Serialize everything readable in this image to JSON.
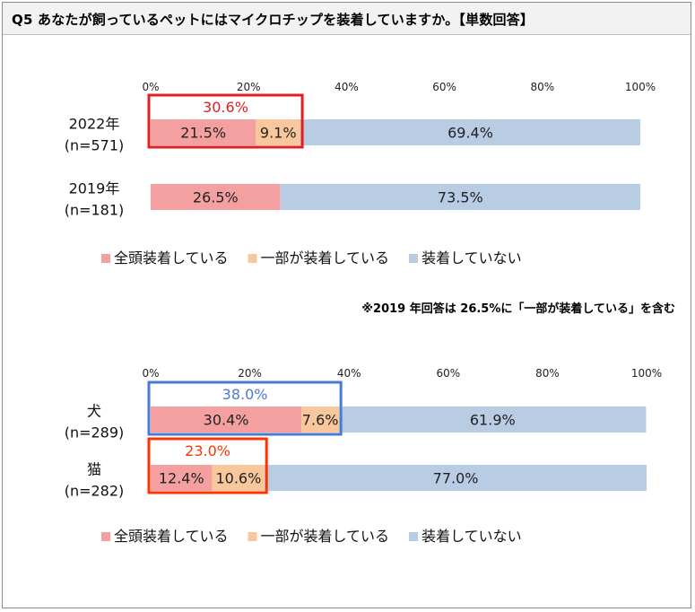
{
  "header": {
    "title": "Q5 あなたが飼っているペットにはマイクロチップを装着していますか。【単数回答】"
  },
  "note": "※2019 年回答は 26.5%に「一部が装着している」を含む",
  "colors": {
    "full": "#f4a0a0",
    "partial": "#f8c79b",
    "none": "#b8cce4",
    "highlight_red": "#e02020",
    "highlight_blue": "#4a7bd0",
    "highlight_orange": "#ff3300"
  },
  "chart_data": [
    {
      "type": "bar",
      "orientation": "horizontal",
      "stacked": true,
      "xlim": [
        0,
        100
      ],
      "ticks": [
        "0%",
        "20%",
        "40%",
        "60%",
        "80%",
        "100%"
      ],
      "categories": [
        {
          "label": "2022年",
          "sublabel": "(n=571)"
        },
        {
          "label": "2019年",
          "sublabel": "(n=181)"
        }
      ],
      "series": [
        {
          "name": "全頭装着している",
          "values": [
            21.5,
            26.5
          ],
          "labels": [
            "21.5%",
            "26.5%"
          ]
        },
        {
          "name": "一部が装着している",
          "values": [
            9.1,
            0
          ],
          "labels": [
            "9.1%",
            ""
          ]
        },
        {
          "name": "装着していない",
          "values": [
            69.4,
            73.5
          ],
          "labels": [
            "69.4%",
            "73.5%"
          ]
        }
      ],
      "highlights": [
        {
          "category_index": 0,
          "text": "30.6%",
          "color": "#e02020"
        }
      ],
      "legend_position": "bottom"
    },
    {
      "type": "bar",
      "orientation": "horizontal",
      "stacked": true,
      "xlim": [
        0,
        100
      ],
      "ticks": [
        "0%",
        "20%",
        "40%",
        "60%",
        "80%",
        "100%"
      ],
      "categories": [
        {
          "label": "犬",
          "sublabel": "(n=289)"
        },
        {
          "label": "猫",
          "sublabel": "(n=282)"
        }
      ],
      "series": [
        {
          "name": "全頭装着している",
          "values": [
            30.4,
            12.4
          ],
          "labels": [
            "30.4%",
            "12.4%"
          ]
        },
        {
          "name": "一部が装着している",
          "values": [
            7.6,
            10.6
          ],
          "labels": [
            "7.6%",
            "10.6%"
          ]
        },
        {
          "name": "装着していない",
          "values": [
            61.9,
            77.0
          ],
          "labels": [
            "61.9%",
            "77.0%"
          ]
        }
      ],
      "highlights": [
        {
          "category_index": 0,
          "text": "38.0%",
          "color": "#4a7bd0"
        },
        {
          "category_index": 1,
          "text": "23.0%",
          "color": "#ff3300"
        }
      ],
      "legend_position": "bottom"
    }
  ]
}
